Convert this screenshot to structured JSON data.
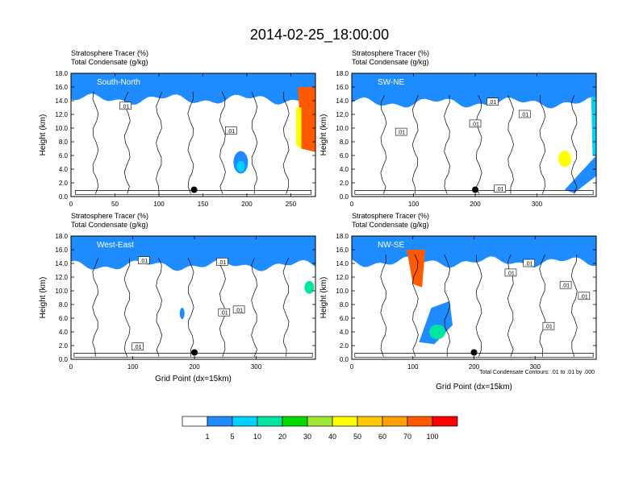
{
  "figure": {
    "title": "2014-02-25_18:00:00",
    "footnote": "Total Condensate Contours: .01 to .01 by .000"
  },
  "colors": {
    "tracer_levels": [
      "#ffffff",
      "#1e8cff",
      "#00d2ff",
      "#00e6a0",
      "#00dc00",
      "#a0e632",
      "#ffff00",
      "#ffc800",
      "#ffa000",
      "#ff5a00",
      "#ff0000"
    ],
    "contour": "#000000",
    "marker": "#000000"
  },
  "chart_data": [
    {
      "type": "heatmap",
      "name": "South-North",
      "subtitle_1": "Stratosphere Tracer   (%)",
      "subtitle_2": "Total Condensate   (g/kg)",
      "region_label": "South-North",
      "ylabel": "Height (km)",
      "xlabel": "",
      "xlim": [
        0,
        278
      ],
      "xticks": [
        "0",
        "50",
        "100",
        "150",
        "200",
        "250"
      ],
      "xtick_values": [
        0,
        50,
        100,
        150,
        200,
        250
      ],
      "ylim": [
        0,
        18
      ],
      "yticks": [
        "0.0",
        "2.0",
        "4.0",
        "6.0",
        "8.0",
        "10.0",
        "12.0",
        "14.0",
        "16.0",
        "18.0"
      ],
      "tropopause_km": 15.5,
      "marker": {
        "x": 140,
        "y": 1.0
      },
      "contour_labels": [
        {
          "text": ".01",
          "x": 62,
          "y": 13.2
        },
        {
          "text": ".01",
          "x": 182,
          "y": 9.6
        }
      ]
    },
    {
      "type": "heatmap",
      "name": "SW-NE",
      "subtitle_1": "Stratosphere Tracer   (%)",
      "subtitle_2": "Total Condensate   (g/kg)",
      "region_label": "SW-NE",
      "ylabel": "Height (km)",
      "xlabel": "",
      "xlim": [
        0,
        396
      ],
      "xticks": [
        "0",
        "100",
        "200",
        "300"
      ],
      "xtick_values": [
        0,
        100,
        200,
        300
      ],
      "ylim": [
        0,
        18
      ],
      "yticks": [
        "0.0",
        "2.0",
        "4.0",
        "6.0",
        "8.0",
        "10.0",
        "12.0",
        "14.0",
        "16.0",
        "18.0"
      ],
      "tropopause_km": 15.0,
      "marker": {
        "x": 200,
        "y": 1.0
      },
      "contour_labels": [
        {
          "text": ".01",
          "x": 228,
          "y": 13.8
        },
        {
          "text": ".01",
          "x": 280,
          "y": 12.0
        },
        {
          "text": ".01",
          "x": 200,
          "y": 10.6
        },
        {
          "text": ".01",
          "x": 80,
          "y": 9.4
        },
        {
          "text": ".01",
          "x": 240,
          "y": 1.1
        }
      ]
    },
    {
      "type": "heatmap",
      "name": "West-East",
      "subtitle_1": "Stratosphere Tracer   (%)",
      "subtitle_2": "Total Condensate   (g/kg)",
      "region_label": "West-East",
      "ylabel": "Height (km)",
      "xlabel": "Grid Point (dx=15km)",
      "xlim": [
        0,
        396
      ],
      "xticks": [
        "0",
        "100",
        "200",
        "300"
      ],
      "xtick_values": [
        0,
        100,
        200,
        300
      ],
      "ylim": [
        0,
        18
      ],
      "yticks": [
        "0.0",
        "2.0",
        "4.0",
        "6.0",
        "8.0",
        "10.0",
        "12.0",
        "14.0",
        "16.0",
        "18.0"
      ],
      "tropopause_km": 15.0,
      "marker": {
        "x": 200,
        "y": 1.0
      },
      "contour_labels": [
        {
          "text": ".01",
          "x": 118,
          "y": 14.4
        },
        {
          "text": ".01",
          "x": 245,
          "y": 14.2
        },
        {
          "text": ".01",
          "x": 248,
          "y": 6.8
        },
        {
          "text": ".01",
          "x": 272,
          "y": 7.2
        },
        {
          "text": ".01",
          "x": 108,
          "y": 1.8
        }
      ]
    },
    {
      "type": "heatmap",
      "name": "NW-SE",
      "subtitle_1": "Stratosphere Tracer   (%)",
      "subtitle_2": "Total Condensate   (g/kg)",
      "region_label": "NW-SE",
      "ylabel": "Height (km)",
      "xlabel": "Grid Point (dx=15km)",
      "xlim": [
        0,
        400
      ],
      "xticks": [
        "0",
        "100",
        "200",
        "300"
      ],
      "xtick_values": [
        0,
        100,
        200,
        300
      ],
      "ylim": [
        0,
        18
      ],
      "yticks": [
        "0.0",
        "2.0",
        "4.0",
        "6.0",
        "8.0",
        "10.0",
        "12.0",
        "14.0",
        "16.0",
        "18.0"
      ],
      "tropopause_km": 15.5,
      "marker": {
        "x": 200,
        "y": 1.0
      },
      "contour_labels": [
        {
          "text": ".01",
          "x": 290,
          "y": 14.0
        },
        {
          "text": ".01",
          "x": 260,
          "y": 12.6
        },
        {
          "text": ".01",
          "x": 350,
          "y": 10.8
        },
        {
          "text": ".01",
          "x": 380,
          "y": 9.2
        },
        {
          "text": ".01",
          "x": 322,
          "y": 4.8
        }
      ]
    }
  ],
  "colorbar": {
    "levels": [
      "1",
      "5",
      "10",
      "20",
      "30",
      "40",
      "50",
      "60",
      "70",
      "100"
    ],
    "colors": [
      "#ffffff",
      "#1e8cff",
      "#00d2ff",
      "#00e6a0",
      "#00dc00",
      "#a0e632",
      "#ffff00",
      "#ffc800",
      "#ffa000",
      "#ff5a00",
      "#ff0000"
    ]
  }
}
